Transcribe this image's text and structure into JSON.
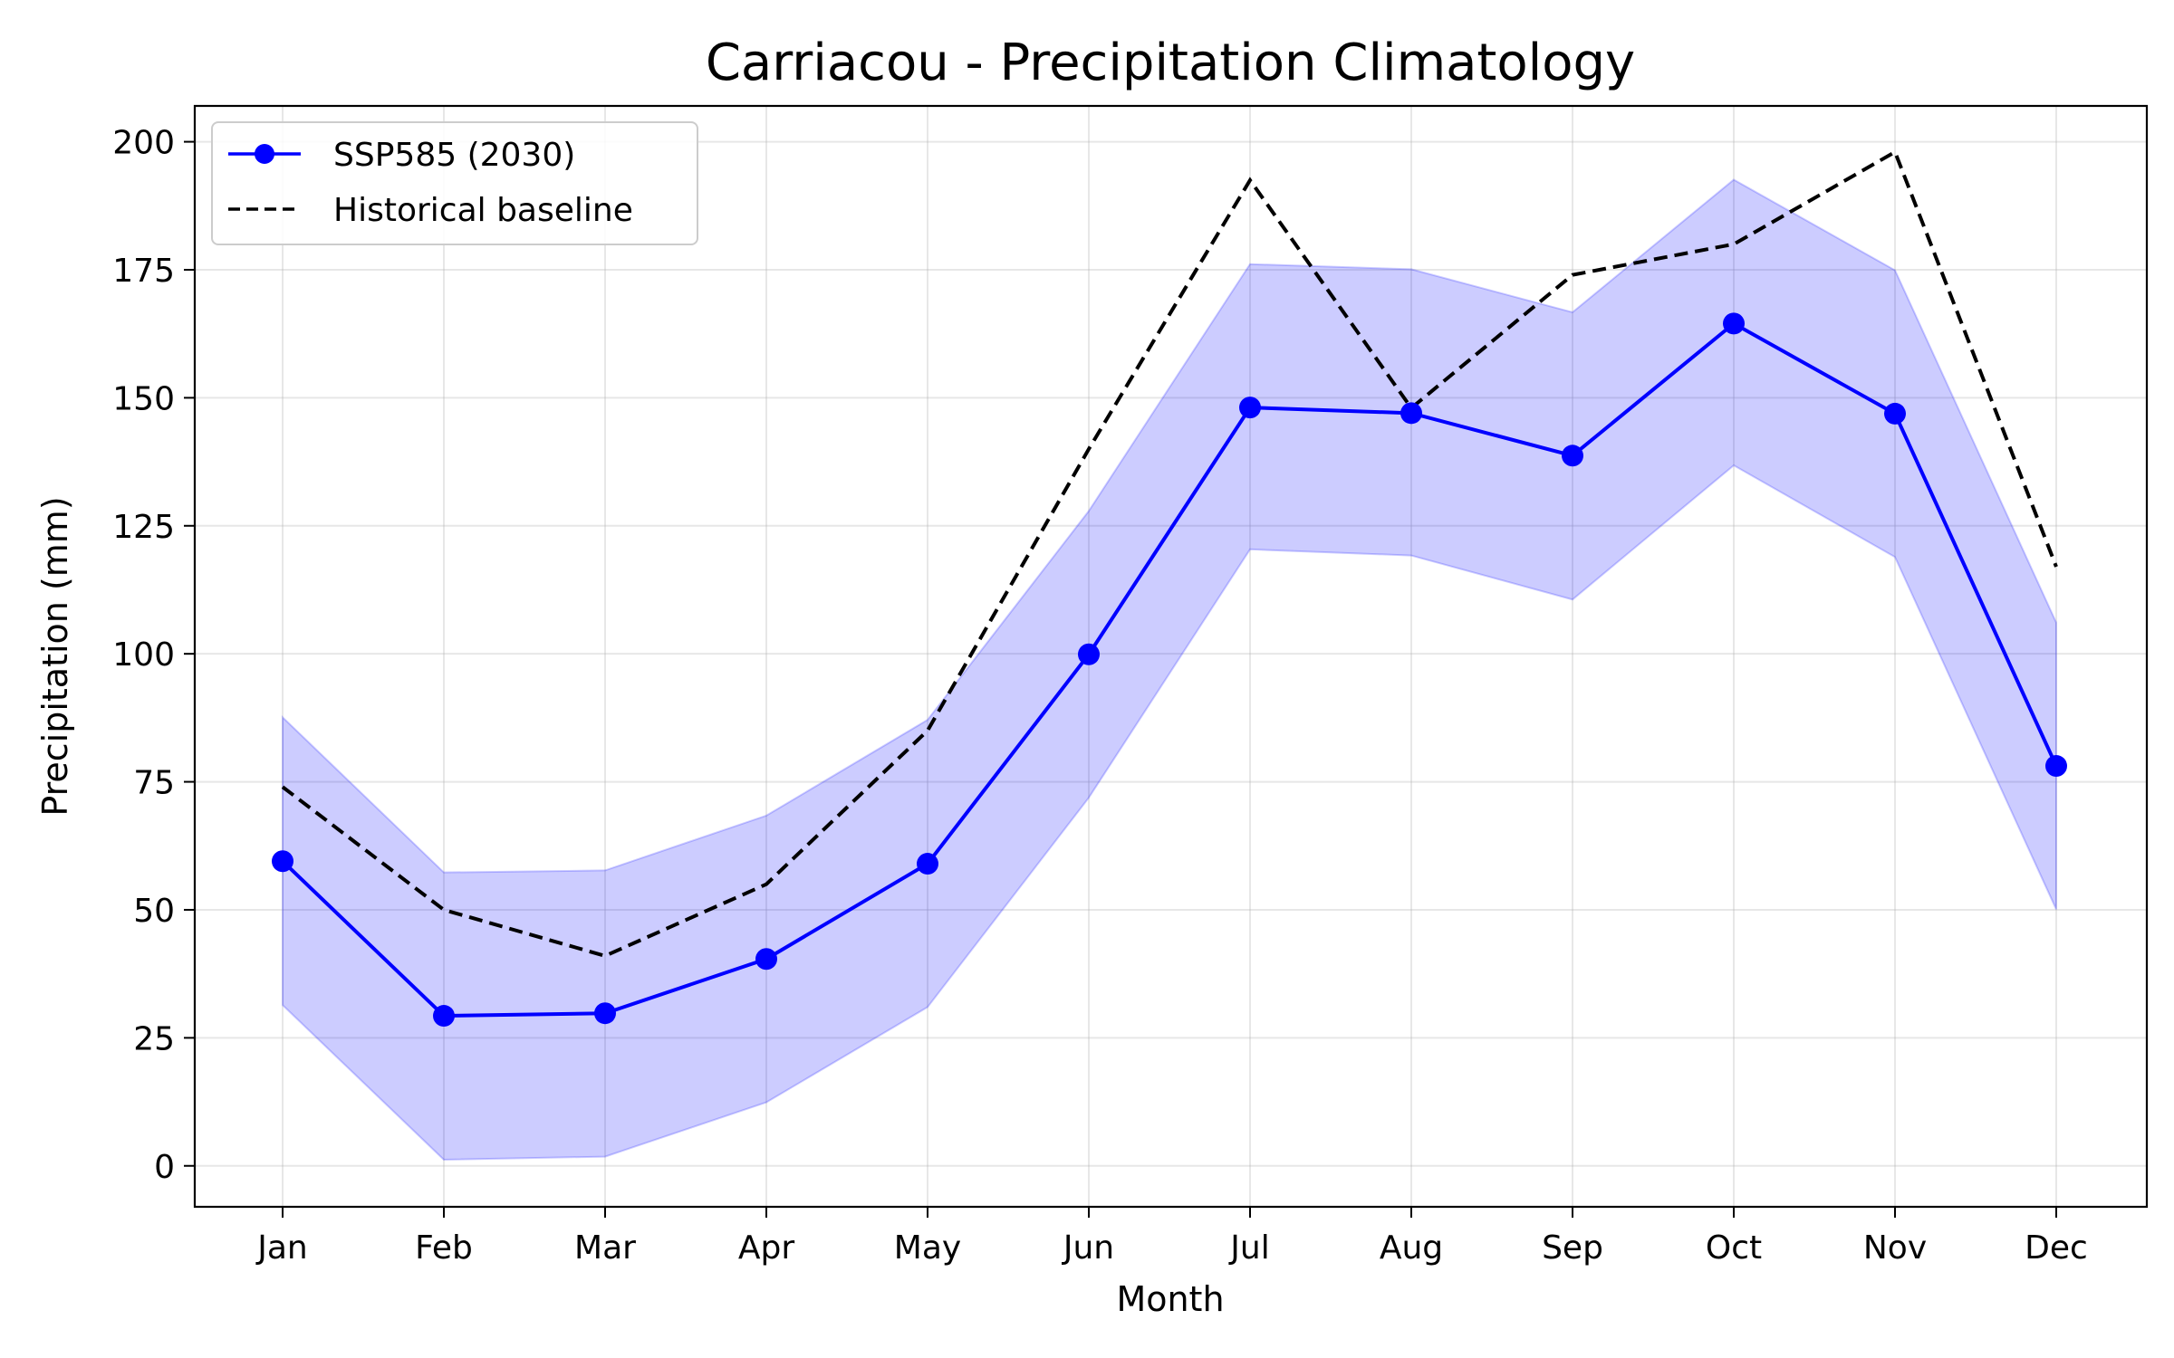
{
  "chart_data": {
    "type": "line",
    "title": "Carriacou - Precipitation Climatology",
    "xlabel": "Month",
    "ylabel": "Precipitation (mm)",
    "categories": [
      "Jan",
      "Feb",
      "Mar",
      "Apr",
      "May",
      "Jun",
      "Jul",
      "Aug",
      "Sep",
      "Oct",
      "Nov",
      "Dec"
    ],
    "ylim": [
      -8,
      207
    ],
    "yticks": [
      0,
      25,
      50,
      75,
      100,
      125,
      150,
      175,
      200
    ],
    "grid": true,
    "legend_position": "top-left",
    "series": [
      {
        "name": "SSP585 (2030)",
        "style": "solid-line-with-markers",
        "color": "#0000ff",
        "values": [
          59.5,
          29.3,
          29.8,
          40.4,
          59.0,
          99.9,
          148.1,
          147.0,
          138.7,
          164.5,
          146.9,
          78.1
        ]
      },
      {
        "name": "Historical baseline",
        "style": "dashed-line",
        "color": "#000000",
        "values": [
          74.0,
          50.0,
          41.0,
          55.0,
          85.0,
          140.0,
          192.5,
          148.0,
          174.0,
          180.0,
          198.0,
          117.0
        ]
      }
    ],
    "band": {
      "of_series": "SSP585 (2030)",
      "color": "#0000ff",
      "lower": [
        31.4,
        1.2,
        1.8,
        12.4,
        31.0,
        71.9,
        120.4,
        119.2,
        110.6,
        136.8,
        118.9,
        50.1
      ],
      "upper": [
        87.6,
        57.3,
        57.7,
        68.4,
        87.1,
        127.9,
        176.1,
        175.1,
        166.7,
        192.6,
        174.9,
        106.1
      ]
    }
  }
}
